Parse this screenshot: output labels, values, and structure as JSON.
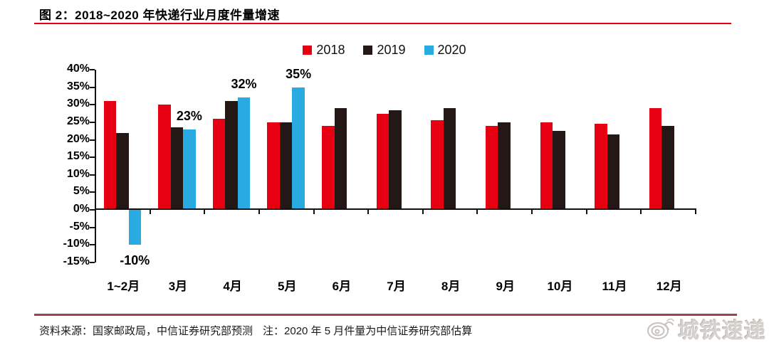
{
  "figure": {
    "title": "图 2：2018~2020 年快递行业月度件量增速",
    "source": "资料来源：国家邮政局，中信证券研究部预测",
    "note": "注：2020 年 5 月件量为中信证券研究部估算",
    "watermark_text": "城铁速递"
  },
  "colors": {
    "series_2018": "#e60012",
    "series_2019": "#231815",
    "series_2020": "#29abe2",
    "title_rule": "#e60012",
    "footer_rule": "#9a444b",
    "axis": "#111111",
    "watermark": "#d6d1cc"
  },
  "chart_data": {
    "type": "bar",
    "title": "2018~2020 年快递行业月度件量增速",
    "categories": [
      "1~2月",
      "3月",
      "4月",
      "5月",
      "6月",
      "7月",
      "8月",
      "9月",
      "10月",
      "11月",
      "12月"
    ],
    "series": [
      {
        "name": "2018",
        "color": "#e60012",
        "values": [
          31,
          30,
          26,
          25,
          24,
          27.5,
          25.5,
          24,
          25,
          24.5,
          29
        ]
      },
      {
        "name": "2019",
        "color": "#231815",
        "values": [
          22,
          23.5,
          31,
          25,
          29,
          28.5,
          29,
          25,
          22.5,
          21.5,
          24
        ]
      },
      {
        "name": "2020",
        "color": "#29abe2",
        "values": [
          -10,
          23,
          32,
          35,
          null,
          null,
          null,
          null,
          null,
          null,
          null
        ]
      }
    ],
    "annotations": [
      {
        "text": "-10%",
        "series": "2020",
        "category": "1~2月"
      },
      {
        "text": "23%",
        "series": "2020",
        "category": "3月"
      },
      {
        "text": "32%",
        "series": "2020",
        "category": "4月"
      },
      {
        "text": "35%",
        "series": "2020",
        "category": "5月"
      }
    ],
    "ylim": [
      -15,
      40
    ],
    "ytick_step": 5,
    "ytick_format": "{v}%",
    "grid": false,
    "legend_position": "top-center"
  }
}
